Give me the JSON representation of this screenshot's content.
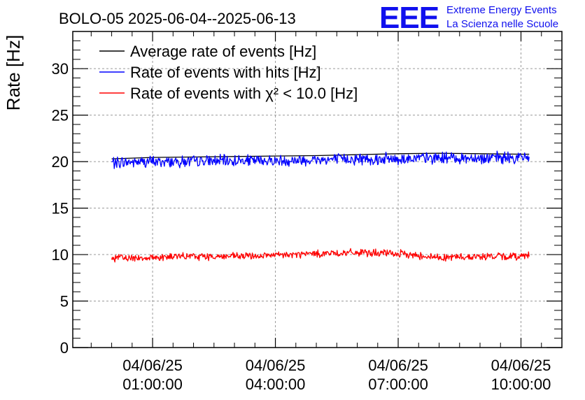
{
  "header": {
    "title": "BOLO-05 2025-06-04--2025-06-13",
    "logo": {
      "mark": "EEE",
      "line1": "Extreme Energy Events",
      "line2": "La Scienza nelle Scuole"
    }
  },
  "chart_data": {
    "type": "line",
    "title": "BOLO-05 2025-06-04--2025-06-13",
    "xlabel": "",
    "ylabel": "Rate [Hz]",
    "ylim": [
      0,
      34
    ],
    "yticks": [
      0,
      5,
      10,
      15,
      20,
      25,
      30
    ],
    "xlim_hours": [
      -0.95,
      11.0
    ],
    "xticks": [
      {
        "hour": 1,
        "date": "04/06/25",
        "time": "01:00:00"
      },
      {
        "hour": 4,
        "date": "04/06/25",
        "time": "04:00:00"
      },
      {
        "hour": 7,
        "date": "04/06/25",
        "time": "07:00:00"
      },
      {
        "hour": 10,
        "date": "04/06/25",
        "time": "10:00:00"
      }
    ],
    "grid": true,
    "legend_position": "top-left",
    "x_hours": [
      0.0,
      1.0,
      2.0,
      3.0,
      4.0,
      5.0,
      6.0,
      7.0,
      8.0,
      9.0,
      10.0,
      10.2
    ],
    "series": [
      {
        "name": "Average rate of events [Hz]",
        "color": "#000000",
        "values": [
          20.3,
          20.45,
          20.5,
          20.55,
          20.6,
          20.65,
          20.75,
          20.85,
          20.9,
          20.85,
          20.8,
          20.8
        ],
        "noise": 0
      },
      {
        "name": "Rate of events with hits [Hz]",
        "color": "#0000ff",
        "values": [
          19.9,
          20.0,
          20.0,
          20.1,
          20.1,
          20.2,
          20.3,
          20.3,
          20.4,
          20.4,
          20.4,
          20.5
        ],
        "noise": 0.55
      },
      {
        "name": "Rate of events with χ² < 10.0 [Hz]",
        "color": "#ff0000",
        "values": [
          9.6,
          9.7,
          9.8,
          9.8,
          9.9,
          10.1,
          10.2,
          10.1,
          9.7,
          9.8,
          9.8,
          10.1
        ],
        "noise": 0.35
      }
    ]
  }
}
